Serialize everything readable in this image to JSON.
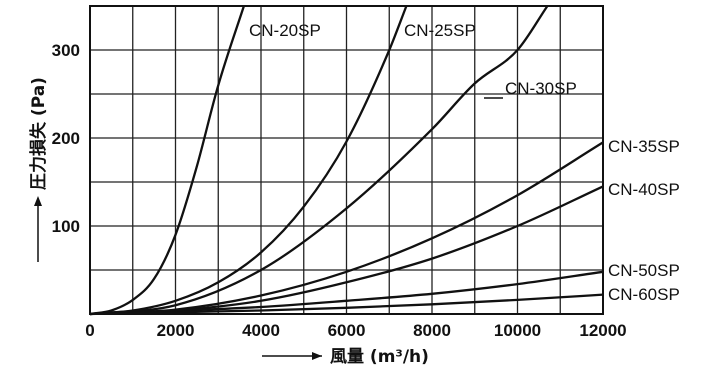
{
  "chart_data": {
    "type": "line",
    "xlabel": "風量 (m³/h)",
    "ylabel": "圧力損失 (Pa)",
    "xlim": [
      0,
      12000
    ],
    "ylim": [
      0,
      350
    ],
    "grid": true,
    "x_ticks": [
      "0",
      "2000",
      "4000",
      "6000",
      "8000",
      "10000",
      "12000"
    ],
    "y_ticks": [
      "100",
      "200",
      "300"
    ],
    "series": [
      {
        "name": "CN-20SP",
        "x": [
          0,
          500,
          1000,
          1500,
          2000,
          2500,
          3000,
          3600
        ],
        "y": [
          0,
          4,
          16,
          40,
          90,
          168,
          260,
          350
        ]
      },
      {
        "name": "CN-25SP",
        "x": [
          0,
          1000,
          2000,
          3000,
          4000,
          5000,
          6000,
          7000,
          7400
        ],
        "y": [
          0,
          4,
          15,
          36,
          70,
          122,
          196,
          300,
          350
        ]
      },
      {
        "name": "CN-30SP",
        "x": [
          0,
          2000,
          4000,
          6000,
          8000,
          9000,
          10000,
          10700
        ],
        "y": [
          0,
          10,
          50,
          120,
          210,
          262,
          300,
          350
        ]
      },
      {
        "name": "CN-35SP",
        "x": [
          0,
          2000,
          4000,
          6000,
          8000,
          10000,
          12000
        ],
        "y": [
          0,
          5,
          21,
          48,
          86,
          135,
          195
        ]
      },
      {
        "name": "CN-40SP",
        "x": [
          0,
          2000,
          4000,
          6000,
          8000,
          10000,
          12000
        ],
        "y": [
          0,
          4,
          15,
          36,
          63,
          100,
          145
        ]
      },
      {
        "name": "CN-50SP",
        "x": [
          0,
          4000,
          6000,
          8000,
          10000,
          12000
        ],
        "y": [
          0,
          8,
          15,
          23,
          34,
          48
        ]
      },
      {
        "name": "CN-60SP",
        "x": [
          0,
          4000,
          6000,
          8000,
          10000,
          12000
        ],
        "y": [
          0,
          4,
          7,
          11,
          16,
          22
        ]
      }
    ]
  }
}
